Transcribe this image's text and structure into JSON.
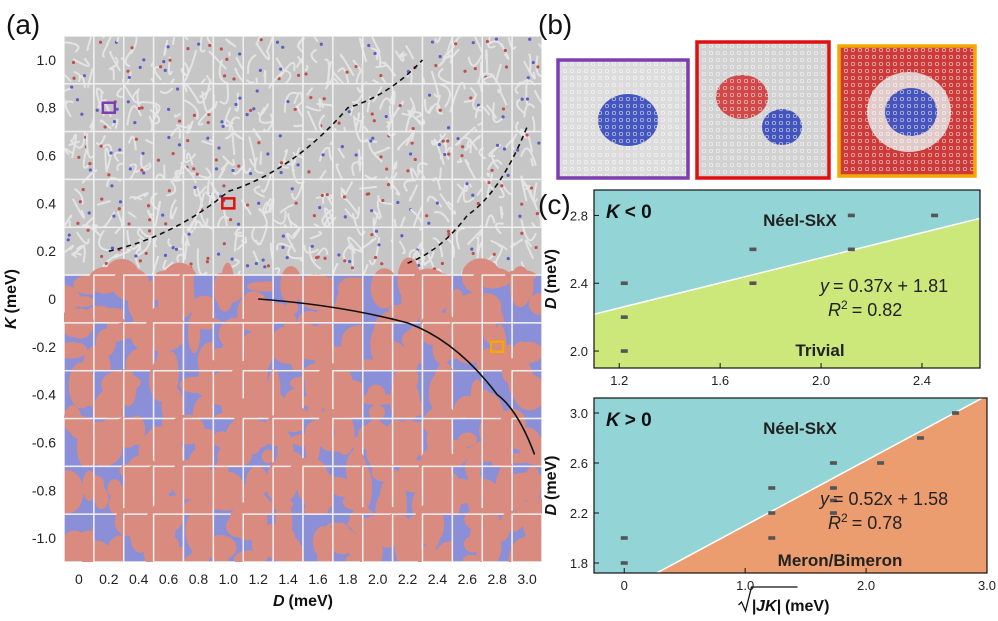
{
  "panel_labels": {
    "a": "(a)",
    "b": "(b)",
    "c": "(c)"
  },
  "colors": {
    "skyrmion_gray": "#c6c6c6",
    "gray_tile_edge": "#efefef",
    "blue_domain": "#8a8fd8",
    "red_domain": "#d98b80",
    "purple_box": "#7d3fb0",
    "red_box": "#e01010",
    "orange_box": "#f4a800",
    "cyan_region": "#93d5d6",
    "green_region": "#cde87a",
    "orange_region": "#ec9d6f"
  },
  "chart_data": [
    {
      "type": "heatmap",
      "panel": "(a)",
      "xlabel_var": "D",
      "xlabel_unit": "(meV)",
      "ylabel_var": "K",
      "ylabel_unit": "(meV)",
      "x_ticks": [
        "0",
        "0.2",
        "0.4",
        "0.6",
        "0.8",
        "1.0",
        "1.2",
        "1.4",
        "1.6",
        "1.8",
        "2.0",
        "2.2",
        "2.4",
        "2.6",
        "2.8",
        "3.0"
      ],
      "y_ticks": [
        "1.0",
        "0.8",
        "0.6",
        "0.4",
        "0.2",
        "0",
        "-0.2",
        "-0.4",
        "-0.6",
        "-0.8",
        "-1.0"
      ],
      "x_values": [
        0,
        0.2,
        0.4,
        0.6,
        0.8,
        1.0,
        1.2,
        1.4,
        1.6,
        1.8,
        2.0,
        2.2,
        2.4,
        2.6,
        2.8,
        3.0
      ],
      "y_values": [
        1.0,
        0.8,
        0.6,
        0.4,
        0.2,
        0,
        -0.2,
        -0.4,
        -0.6,
        -0.8,
        -1.0
      ],
      "regions_by_K": "K > 0: gray skyrmion/meron textures; K <= 0: red/blue domain textures",
      "boundary_curves": [
        {
          "style": "dashed",
          "points": [
            [
              0.2,
              0.2
            ],
            [
              1.0,
              0.45
            ],
            [
              1.8,
              0.8
            ],
            [
              2.3,
              1.0
            ]
          ]
        },
        {
          "style": "dashed",
          "points": [
            [
              2.2,
              0.15
            ],
            [
              2.6,
              0.35
            ],
            [
              3.0,
              0.72
            ]
          ]
        },
        {
          "style": "solid",
          "points": [
            [
              1.2,
              0.0
            ],
            [
              2.2,
              -0.1
            ],
            [
              2.8,
              -0.4
            ],
            [
              3.05,
              -0.65
            ]
          ]
        }
      ],
      "highlights": [
        {
          "name": "purple",
          "D": 0.2,
          "K": 0.8
        },
        {
          "name": "red",
          "D": 1.0,
          "K": 0.4
        },
        {
          "name": "orange",
          "D": 2.8,
          "K": -0.2
        }
      ]
    },
    {
      "type": "scatter",
      "panel": "(c) top",
      "condition_var": "K",
      "condition_rel": "< 0",
      "regions": [
        "Néel-SkX",
        "Trivial"
      ],
      "fit": {
        "slope": 0.37,
        "intercept": 1.81,
        "R2": 0.82
      },
      "fit_label": {
        "y_var": "y",
        "expr": "= 0.37x + 1.81",
        "r_var": "R",
        "r_exp": "2",
        "r_val": "= 0.82"
      },
      "xlim": [
        1.1,
        2.63
      ],
      "ylim": [
        1.9,
        2.95
      ],
      "x_ticks": [
        "1.2",
        "1.6",
        "2.0",
        "2.4"
      ],
      "y_ticks": [
        "2.0",
        "2.4",
        "2.8"
      ],
      "ylabel_var": "D",
      "ylabel_unit": "(meV)",
      "points": [
        [
          1.22,
          2.0
        ],
        [
          1.22,
          2.2
        ],
        [
          1.22,
          2.4
        ],
        [
          1.73,
          2.4
        ],
        [
          1.73,
          2.6
        ],
        [
          2.12,
          2.6
        ],
        [
          2.12,
          2.8
        ],
        [
          2.45,
          2.8
        ]
      ]
    },
    {
      "type": "scatter",
      "panel": "(c) bottom",
      "condition_var": "K",
      "condition_rel": "> 0",
      "regions": [
        "Néel-SkX",
        "Meron/Bimeron"
      ],
      "fit": {
        "slope": 0.52,
        "intercept": 1.58,
        "R2": 0.78
      },
      "fit_label": {
        "y_var": "y",
        "expr": "= 0.52x + 1.58",
        "r_var": "R",
        "r_exp": "2",
        "r_val": "= 0.78"
      },
      "xlim": [
        -0.25,
        3.0
      ],
      "ylim": [
        1.72,
        3.12
      ],
      "x_ticks": [
        "0",
        "1.0",
        "2.0",
        "3.0"
      ],
      "y_ticks": [
        "1.8",
        "2.2",
        "2.6",
        "3.0"
      ],
      "ylabel_var": "D",
      "ylabel_unit": "(meV)",
      "xlabel_unit": "(meV)",
      "xlabel_text": "|JK|",
      "points": [
        [
          0,
          1.8
        ],
        [
          0,
          2.0
        ],
        [
          1.22,
          2.0
        ],
        [
          1.22,
          2.2
        ],
        [
          1.22,
          2.4
        ],
        [
          1.73,
          2.2
        ],
        [
          1.73,
          2.3
        ],
        [
          1.73,
          2.4
        ],
        [
          1.73,
          2.6
        ],
        [
          2.12,
          2.6
        ],
        [
          2.45,
          2.8
        ],
        [
          2.74,
          3.0
        ]
      ]
    }
  ]
}
